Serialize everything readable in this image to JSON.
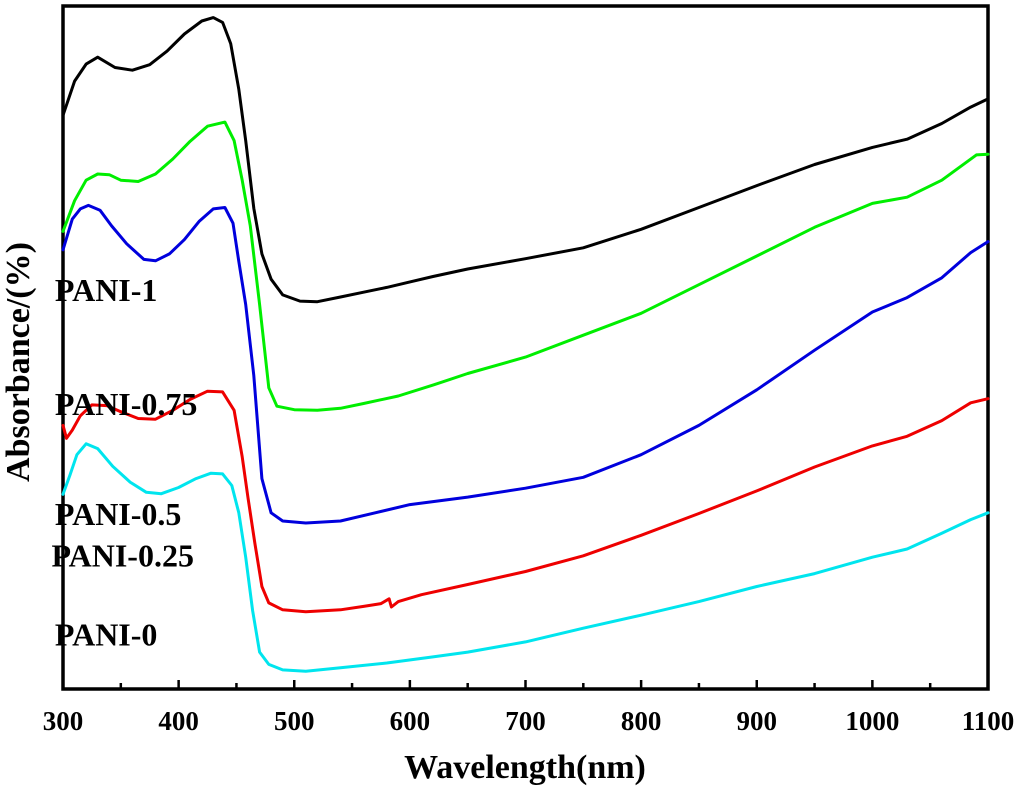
{
  "chart_data": {
    "type": "line",
    "title": "",
    "xlabel": "Wavelength(nm)",
    "ylabel": "Absorbance/(%)",
    "xlim": [
      300,
      1100
    ],
    "ylim": [
      0,
      100
    ],
    "x_ticks": [
      300,
      400,
      500,
      600,
      700,
      800,
      900,
      1000,
      1100
    ],
    "x_ticklabels": [
      "300",
      "400",
      "500",
      "600",
      "700",
      "800",
      "900",
      "1000",
      "1100"
    ],
    "y_ticks_shown": false,
    "grid": false,
    "series": [
      {
        "name": "PANI-1",
        "color": "#000000",
        "points": [
          [
            300,
            84.0
          ],
          [
            310,
            89.0
          ],
          [
            320,
            91.5
          ],
          [
            330,
            92.5
          ],
          [
            345,
            91.0
          ],
          [
            360,
            90.6
          ],
          [
            375,
            91.4
          ],
          [
            390,
            93.4
          ],
          [
            405,
            95.9
          ],
          [
            420,
            97.8
          ],
          [
            430,
            98.3
          ],
          [
            438,
            97.6
          ],
          [
            445,
            94.5
          ],
          [
            452,
            87.8
          ],
          [
            458,
            80.3
          ],
          [
            465,
            70.4
          ],
          [
            472,
            63.7
          ],
          [
            480,
            60.0
          ],
          [
            490,
            57.7
          ],
          [
            505,
            56.8
          ],
          [
            520,
            56.7
          ],
          [
            540,
            57.4
          ],
          [
            560,
            58.1
          ],
          [
            580,
            58.8
          ],
          [
            600,
            59.6
          ],
          [
            620,
            60.4
          ],
          [
            650,
            61.5
          ],
          [
            700,
            63.0
          ],
          [
            750,
            64.6
          ],
          [
            800,
            67.3
          ],
          [
            850,
            70.5
          ],
          [
            900,
            73.7
          ],
          [
            950,
            76.8
          ],
          [
            1000,
            79.3
          ],
          [
            1030,
            80.5
          ],
          [
            1060,
            82.8
          ],
          [
            1085,
            85.2
          ],
          [
            1100,
            86.4
          ]
        ],
        "label_pos": [
          293,
          56.8
        ]
      },
      {
        "name": "PANI-0.75",
        "color": "#00ee00",
        "points": [
          [
            300,
            67.0
          ],
          [
            310,
            71.5
          ],
          [
            320,
            74.5
          ],
          [
            330,
            75.4
          ],
          [
            340,
            75.3
          ],
          [
            350,
            74.5
          ],
          [
            365,
            74.3
          ],
          [
            380,
            75.4
          ],
          [
            395,
            77.6
          ],
          [
            410,
            80.2
          ],
          [
            425,
            82.4
          ],
          [
            440,
            83.0
          ],
          [
            448,
            80.3
          ],
          [
            455,
            74.5
          ],
          [
            462,
            67.8
          ],
          [
            470,
            56.3
          ],
          [
            478,
            44.1
          ],
          [
            485,
            41.4
          ],
          [
            500,
            40.9
          ],
          [
            520,
            40.8
          ],
          [
            540,
            41.1
          ],
          [
            560,
            41.8
          ],
          [
            590,
            42.9
          ],
          [
            620,
            44.5
          ],
          [
            650,
            46.2
          ],
          [
            700,
            48.6
          ],
          [
            750,
            51.8
          ],
          [
            800,
            55.0
          ],
          [
            850,
            59.2
          ],
          [
            900,
            63.4
          ],
          [
            950,
            67.6
          ],
          [
            1000,
            71.1
          ],
          [
            1030,
            72.0
          ],
          [
            1060,
            74.5
          ],
          [
            1090,
            78.2
          ],
          [
            1100,
            78.3
          ]
        ],
        "label_pos": [
          293,
          40.1
        ]
      },
      {
        "name": "PANI-0.5",
        "color": "#0000dd",
        "points": [
          [
            300,
            64.3
          ],
          [
            308,
            68.8
          ],
          [
            315,
            70.3
          ],
          [
            322,
            70.8
          ],
          [
            332,
            70.1
          ],
          [
            342,
            67.8
          ],
          [
            355,
            65.2
          ],
          [
            370,
            62.9
          ],
          [
            380,
            62.7
          ],
          [
            392,
            63.7
          ],
          [
            405,
            65.8
          ],
          [
            418,
            68.5
          ],
          [
            430,
            70.3
          ],
          [
            440,
            70.5
          ],
          [
            447,
            68.2
          ],
          [
            452,
            62.6
          ],
          [
            458,
            56.3
          ],
          [
            465,
            45.9
          ],
          [
            472,
            30.8
          ],
          [
            480,
            25.8
          ],
          [
            490,
            24.6
          ],
          [
            510,
            24.3
          ],
          [
            540,
            24.6
          ],
          [
            570,
            25.8
          ],
          [
            600,
            27.0
          ],
          [
            650,
            28.1
          ],
          [
            700,
            29.4
          ],
          [
            750,
            31.0
          ],
          [
            800,
            34.3
          ],
          [
            850,
            38.6
          ],
          [
            900,
            43.8
          ],
          [
            950,
            49.6
          ],
          [
            1000,
            55.2
          ],
          [
            1030,
            57.3
          ],
          [
            1060,
            60.2
          ],
          [
            1085,
            63.9
          ],
          [
            1100,
            65.5
          ]
        ],
        "label_pos": [
          293,
          24.0
        ]
      },
      {
        "name": "PANI-0.25",
        "color": "#ee0000",
        "points": [
          [
            300,
            38.6
          ],
          [
            303,
            36.7
          ],
          [
            308,
            37.9
          ],
          [
            315,
            40.0
          ],
          [
            325,
            41.6
          ],
          [
            338,
            41.5
          ],
          [
            350,
            40.6
          ],
          [
            365,
            39.6
          ],
          [
            380,
            39.5
          ],
          [
            395,
            40.8
          ],
          [
            410,
            42.4
          ],
          [
            425,
            43.6
          ],
          [
            438,
            43.5
          ],
          [
            448,
            40.8
          ],
          [
            455,
            34.0
          ],
          [
            460,
            28.0
          ],
          [
            466,
            21.3
          ],
          [
            472,
            15.0
          ],
          [
            478,
            12.6
          ],
          [
            490,
            11.6
          ],
          [
            510,
            11.3
          ],
          [
            540,
            11.6
          ],
          [
            560,
            12.1
          ],
          [
            575,
            12.5
          ],
          [
            582,
            13.2
          ],
          [
            584,
            12.0
          ],
          [
            590,
            12.8
          ],
          [
            610,
            13.8
          ],
          [
            650,
            15.3
          ],
          [
            700,
            17.2
          ],
          [
            750,
            19.5
          ],
          [
            800,
            22.5
          ],
          [
            850,
            25.7
          ],
          [
            900,
            29.0
          ],
          [
            950,
            32.5
          ],
          [
            1000,
            35.6
          ],
          [
            1030,
            37.0
          ],
          [
            1060,
            39.3
          ],
          [
            1085,
            41.9
          ],
          [
            1100,
            42.5
          ]
        ],
        "label_pos": [
          290,
          17.9
        ]
      },
      {
        "name": "PANI-0",
        "color": "#00e5ee",
        "points": [
          [
            300,
            28.5
          ],
          [
            306,
            31.3
          ],
          [
            312,
            34.3
          ],
          [
            320,
            35.9
          ],
          [
            330,
            35.2
          ],
          [
            343,
            32.6
          ],
          [
            358,
            30.3
          ],
          [
            372,
            28.8
          ],
          [
            385,
            28.6
          ],
          [
            400,
            29.5
          ],
          [
            415,
            30.8
          ],
          [
            428,
            31.6
          ],
          [
            438,
            31.5
          ],
          [
            446,
            29.8
          ],
          [
            452,
            25.8
          ],
          [
            458,
            19.3
          ],
          [
            464,
            11.5
          ],
          [
            470,
            5.4
          ],
          [
            478,
            3.6
          ],
          [
            490,
            2.8
          ],
          [
            510,
            2.6
          ],
          [
            540,
            3.1
          ],
          [
            580,
            3.8
          ],
          [
            620,
            4.7
          ],
          [
            650,
            5.4
          ],
          [
            700,
            6.9
          ],
          [
            750,
            8.9
          ],
          [
            800,
            10.8
          ],
          [
            850,
            12.8
          ],
          [
            900,
            15.0
          ],
          [
            950,
            16.9
          ],
          [
            1000,
            19.3
          ],
          [
            1030,
            20.5
          ],
          [
            1060,
            22.8
          ],
          [
            1085,
            24.8
          ],
          [
            1100,
            25.8
          ]
        ],
        "label_pos": [
          293,
          6.4
        ]
      }
    ]
  }
}
